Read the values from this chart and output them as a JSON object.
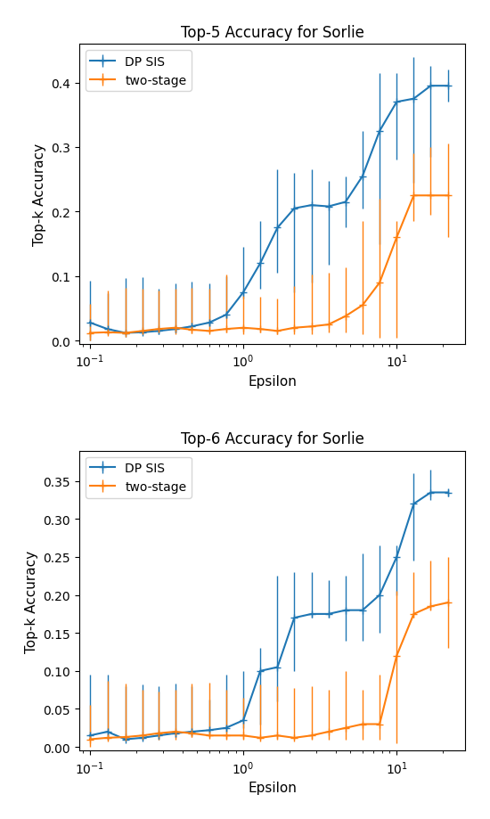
{
  "plot1": {
    "title": "Top-5 Accuracy for Sorlie",
    "ylabel": "Top-k Accuracy",
    "xlabel": "Epsilon",
    "blue_x": [
      0.1,
      0.13,
      0.17,
      0.22,
      0.28,
      0.36,
      0.46,
      0.6,
      0.77,
      1.0,
      1.29,
      1.67,
      2.15,
      2.78,
      3.59,
      4.64,
      5.99,
      7.74,
      10.0,
      12.92,
      16.68,
      21.54
    ],
    "blue_y": [
      0.028,
      0.018,
      0.012,
      0.013,
      0.015,
      0.018,
      0.022,
      0.028,
      0.04,
      0.075,
      0.12,
      0.175,
      0.205,
      0.21,
      0.208,
      0.215,
      0.255,
      0.325,
      0.37,
      0.375,
      0.395,
      0.395
    ],
    "blue_yerr_lo": [
      0.028,
      0.008,
      0.003,
      0.003,
      0.005,
      0.005,
      0.005,
      0.005,
      0.005,
      0.01,
      0.04,
      0.07,
      0.13,
      0.12,
      0.09,
      0.04,
      0.05,
      0.175,
      0.09,
      0.13,
      0.11,
      0.025
    ],
    "blue_yerr_hi": [
      0.065,
      0.055,
      0.085,
      0.085,
      0.065,
      0.07,
      0.07,
      0.06,
      0.06,
      0.07,
      0.065,
      0.09,
      0.055,
      0.055,
      0.04,
      0.04,
      0.07,
      0.09,
      0.045,
      0.065,
      0.03,
      0.025
    ],
    "orange_x": [
      0.1,
      0.13,
      0.17,
      0.22,
      0.28,
      0.36,
      0.46,
      0.6,
      0.77,
      1.0,
      1.29,
      1.67,
      2.15,
      2.78,
      3.59,
      4.64,
      5.99,
      7.74,
      10.0,
      12.92,
      16.68,
      21.54
    ],
    "orange_y": [
      0.012,
      0.013,
      0.012,
      0.015,
      0.018,
      0.02,
      0.017,
      0.015,
      0.018,
      0.02,
      0.018,
      0.015,
      0.02,
      0.022,
      0.025,
      0.038,
      0.055,
      0.09,
      0.16,
      0.225,
      0.225,
      0.225
    ],
    "orange_yerr_lo": [
      0.012,
      0.003,
      0.002,
      0.003,
      0.005,
      0.01,
      0.005,
      0.002,
      0.005,
      0.01,
      0.005,
      0.005,
      0.01,
      0.012,
      0.012,
      0.025,
      0.045,
      0.085,
      0.155,
      0.04,
      0.03,
      0.065
    ],
    "orange_yerr_hi": [
      0.045,
      0.065,
      0.07,
      0.065,
      0.06,
      0.06,
      0.065,
      0.065,
      0.085,
      0.05,
      0.05,
      0.05,
      0.065,
      0.08,
      0.08,
      0.075,
      0.13,
      0.13,
      0.025,
      0.065,
      0.075,
      0.08
    ],
    "ylim": [
      -0.005,
      0.46
    ],
    "yticks": [
      0.0,
      0.1,
      0.2,
      0.3,
      0.4
    ]
  },
  "plot2": {
    "title": "Top-6 Accuracy for Sorlie",
    "ylabel": "Top-k Accuracy",
    "xlabel": "Epsilon",
    "blue_x": [
      0.1,
      0.13,
      0.17,
      0.22,
      0.28,
      0.36,
      0.46,
      0.6,
      0.77,
      1.0,
      1.29,
      1.67,
      2.15,
      2.78,
      3.59,
      4.64,
      5.99,
      7.74,
      10.0,
      12.92,
      16.68,
      21.54
    ],
    "blue_y": [
      0.015,
      0.02,
      0.01,
      0.012,
      0.015,
      0.018,
      0.02,
      0.022,
      0.025,
      0.035,
      0.1,
      0.105,
      0.17,
      0.175,
      0.175,
      0.18,
      0.18,
      0.2,
      0.25,
      0.32,
      0.335,
      0.335
    ],
    "blue_yerr_lo": [
      0.005,
      0.01,
      0.0,
      0.002,
      0.005,
      0.005,
      0.005,
      0.003,
      0.005,
      0.01,
      0.07,
      0.045,
      0.07,
      0.005,
      0.005,
      0.04,
      0.04,
      0.05,
      0.05,
      0.075,
      0.01,
      0.005
    ],
    "blue_yerr_hi": [
      0.08,
      0.075,
      0.07,
      0.07,
      0.065,
      0.065,
      0.06,
      0.04,
      0.07,
      0.065,
      0.03,
      0.12,
      0.06,
      0.055,
      0.045,
      0.045,
      0.075,
      0.065,
      0.015,
      0.04,
      0.03,
      0.005
    ],
    "orange_x": [
      0.1,
      0.13,
      0.17,
      0.22,
      0.28,
      0.36,
      0.46,
      0.6,
      0.77,
      1.0,
      1.29,
      1.67,
      2.15,
      2.78,
      3.59,
      4.64,
      5.99,
      7.74,
      10.0,
      12.92,
      16.68,
      21.54
    ],
    "orange_y": [
      0.01,
      0.012,
      0.013,
      0.015,
      0.018,
      0.02,
      0.018,
      0.015,
      0.015,
      0.015,
      0.012,
      0.015,
      0.012,
      0.015,
      0.02,
      0.025,
      0.03,
      0.03,
      0.12,
      0.175,
      0.185,
      0.19
    ],
    "orange_yerr_lo": [
      0.01,
      0.002,
      0.003,
      0.005,
      0.008,
      0.01,
      0.005,
      0.002,
      0.005,
      0.005,
      0.002,
      0.005,
      0.002,
      0.005,
      0.01,
      0.015,
      0.02,
      0.02,
      0.115,
      0.005,
      0.005,
      0.06
    ],
    "orange_yerr_hi": [
      0.045,
      0.075,
      0.07,
      0.06,
      0.055,
      0.055,
      0.065,
      0.07,
      0.06,
      0.05,
      0.07,
      0.065,
      0.065,
      0.065,
      0.055,
      0.075,
      0.045,
      0.065,
      0.085,
      0.055,
      0.06,
      0.06
    ],
    "ylim": [
      -0.005,
      0.39
    ],
    "yticks": [
      0.0,
      0.05,
      0.1,
      0.15,
      0.2,
      0.25,
      0.3,
      0.35
    ]
  },
  "blue_color": "#1f77b4",
  "orange_color": "#ff7f0e"
}
